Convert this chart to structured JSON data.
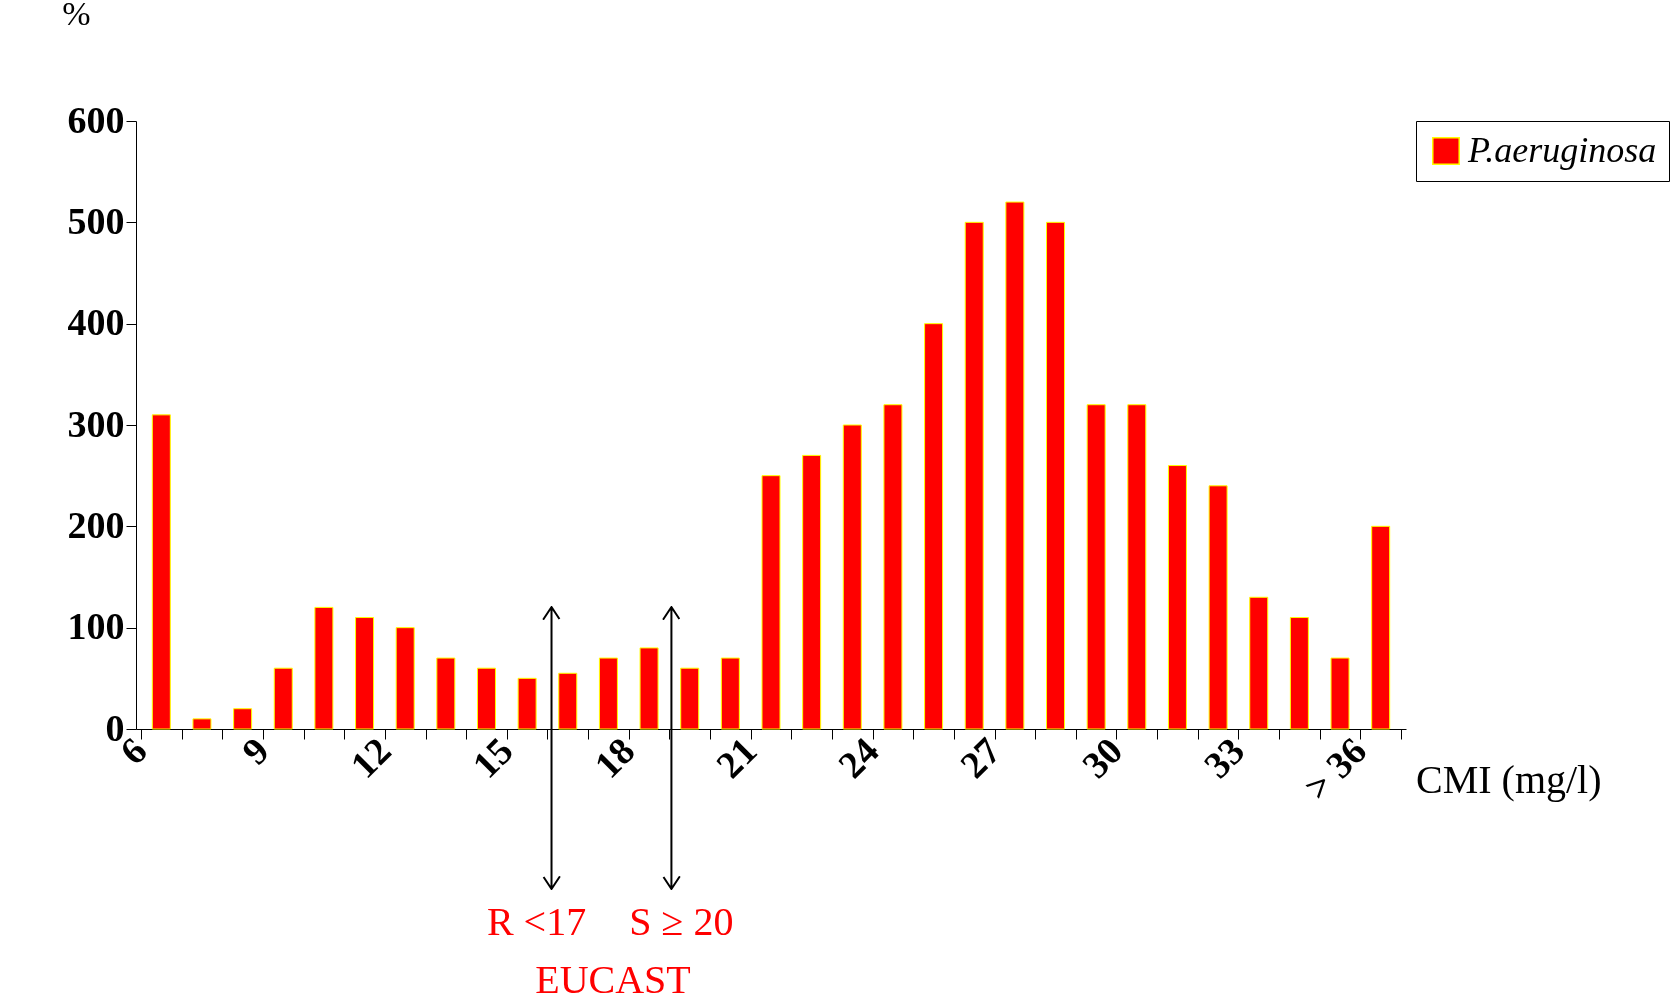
{
  "chart_data": {
    "type": "bar",
    "ylabel": "%",
    "xlabel": "CMI (mg/l)",
    "x": [
      6.5,
      7.5,
      8.5,
      9.5,
      10.5,
      11.5,
      12.5,
      13.5,
      14.5,
      15.5,
      16.5,
      17.5,
      18.5,
      19.5,
      20.5,
      21.5,
      22.5,
      23.5,
      24.5,
      25.5,
      26.5,
      27.5,
      28.5,
      29.5,
      30.5,
      31.5,
      32.5,
      33.5,
      34.5,
      35.5,
      36.5
    ],
    "series": [
      {
        "name": "P.aeruginosa",
        "color": "#ff0000",
        "values": [
          310,
          10,
          20,
          60,
          120,
          110,
          100,
          70,
          60,
          50,
          55,
          70,
          80,
          60,
          70,
          250,
          270,
          300,
          320,
          400,
          500,
          520,
          500,
          320,
          320,
          260,
          240,
          130,
          110,
          70,
          200
        ]
      }
    ],
    "xlim": [
      6,
      37
    ],
    "xticks": [
      6,
      {
        "value": 7,
        "label": null
      },
      {
        "value": 8,
        "label": null
      },
      9,
      {
        "value": 10,
        "label": null
      },
      {
        "value": 11,
        "label": null
      },
      12,
      {
        "value": 13,
        "label": null
      },
      {
        "value": 14,
        "label": null
      },
      15,
      {
        "value": 16,
        "label": null
      },
      {
        "value": 17,
        "label": null
      },
      18,
      {
        "value": 19,
        "label": null
      },
      {
        "value": 20,
        "label": null
      },
      21,
      {
        "value": 22,
        "label": null
      },
      {
        "value": 23,
        "label": null
      },
      24,
      {
        "value": 25,
        "label": null
      },
      {
        "value": 26,
        "label": null
      },
      27,
      {
        "value": 28,
        "label": null
      },
      {
        "value": 29,
        "label": null
      },
      30,
      {
        "value": 31,
        "label": null
      },
      {
        "value": 32,
        "label": null
      },
      33,
      {
        "value": 34,
        "label": null
      },
      {
        "value": 35,
        "label": null
      },
      {
        "value": 36,
        "label": "> 36"
      },
      {
        "value": 37,
        "label": null
      }
    ],
    "ylim": [
      0,
      600
    ],
    "yticks": [
      0,
      100,
      200,
      300,
      400,
      500,
      600
    ],
    "ref_lines": [
      {
        "axis": "x",
        "value": 16.1,
        "label": "R <17",
        "color": "#000000"
      },
      {
        "axis": "x",
        "value": 19.05,
        "label": "S ≥ 20",
        "color": "#000000"
      }
    ],
    "annotations": [
      "EUCAST"
    ],
    "legend": "right",
    "grid": false
  }
}
